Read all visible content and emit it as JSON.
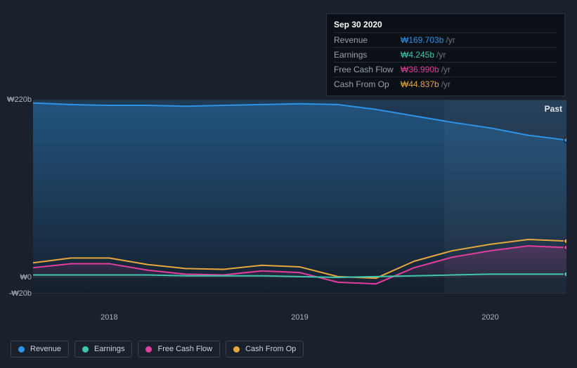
{
  "tooltip": {
    "date": "Sep 30 2020",
    "unit": "/yr",
    "rows": [
      {
        "label": "Revenue",
        "value": "₩169.703b",
        "colorClass": "rev-color"
      },
      {
        "label": "Earnings",
        "value": "₩4.245b",
        "colorClass": "earn-color"
      },
      {
        "label": "Free Cash Flow",
        "value": "₩36.990b",
        "colorClass": "fcf-color"
      },
      {
        "label": "Cash From Op",
        "value": "₩44.837b",
        "colorClass": "cfo-color"
      }
    ]
  },
  "chart": {
    "yTicks": [
      {
        "v": 220,
        "label": "₩220b"
      },
      {
        "v": 0,
        "label": "₩0"
      },
      {
        "v": -20,
        "label": "-₩20b"
      }
    ],
    "yMax": 220,
    "yMin": -20,
    "xMin": 0,
    "xMax": 14,
    "xTicks": [
      {
        "v": 2,
        "label": "2018"
      },
      {
        "v": 7,
        "label": "2019"
      },
      {
        "v": 12,
        "label": "2020"
      }
    ],
    "pastLabel": "Past",
    "highlightFrom": 10.8,
    "gradientTop": "#1e3a55",
    "gradientBottom": "#15202e",
    "gridColor": "#2a3340",
    "background": "#121821",
    "series": {
      "revenue": {
        "color": "#2e93e6",
        "values": [
          216,
          214,
          213,
          213,
          212,
          213,
          214,
          215,
          214,
          208,
          200,
          192,
          185,
          176,
          170
        ],
        "endDot": true
      },
      "earnings": {
        "color": "#3ec7b0",
        "values": [
          3,
          3,
          3,
          3,
          2,
          2,
          2,
          1,
          0,
          1,
          2,
          3,
          4,
          4,
          4
        ],
        "endDot": true
      },
      "fcf": {
        "color": "#e23ea0",
        "values": [
          12,
          17,
          17,
          9,
          4,
          3,
          8,
          6,
          -6,
          -8,
          12,
          25,
          33,
          39,
          37
        ],
        "endDot": true
      },
      "cfo": {
        "color": "#e6a83c",
        "values": [
          18,
          24,
          24,
          16,
          11,
          10,
          15,
          13,
          1,
          -1,
          20,
          33,
          41,
          47,
          45
        ],
        "endDot": true
      }
    }
  },
  "legend": [
    {
      "label": "Revenue",
      "color": "#2e93e6"
    },
    {
      "label": "Earnings",
      "color": "#3ec7b0"
    },
    {
      "label": "Free Cash Flow",
      "color": "#e23ea0"
    },
    {
      "label": "Cash From Op",
      "color": "#e6a83c"
    }
  ]
}
